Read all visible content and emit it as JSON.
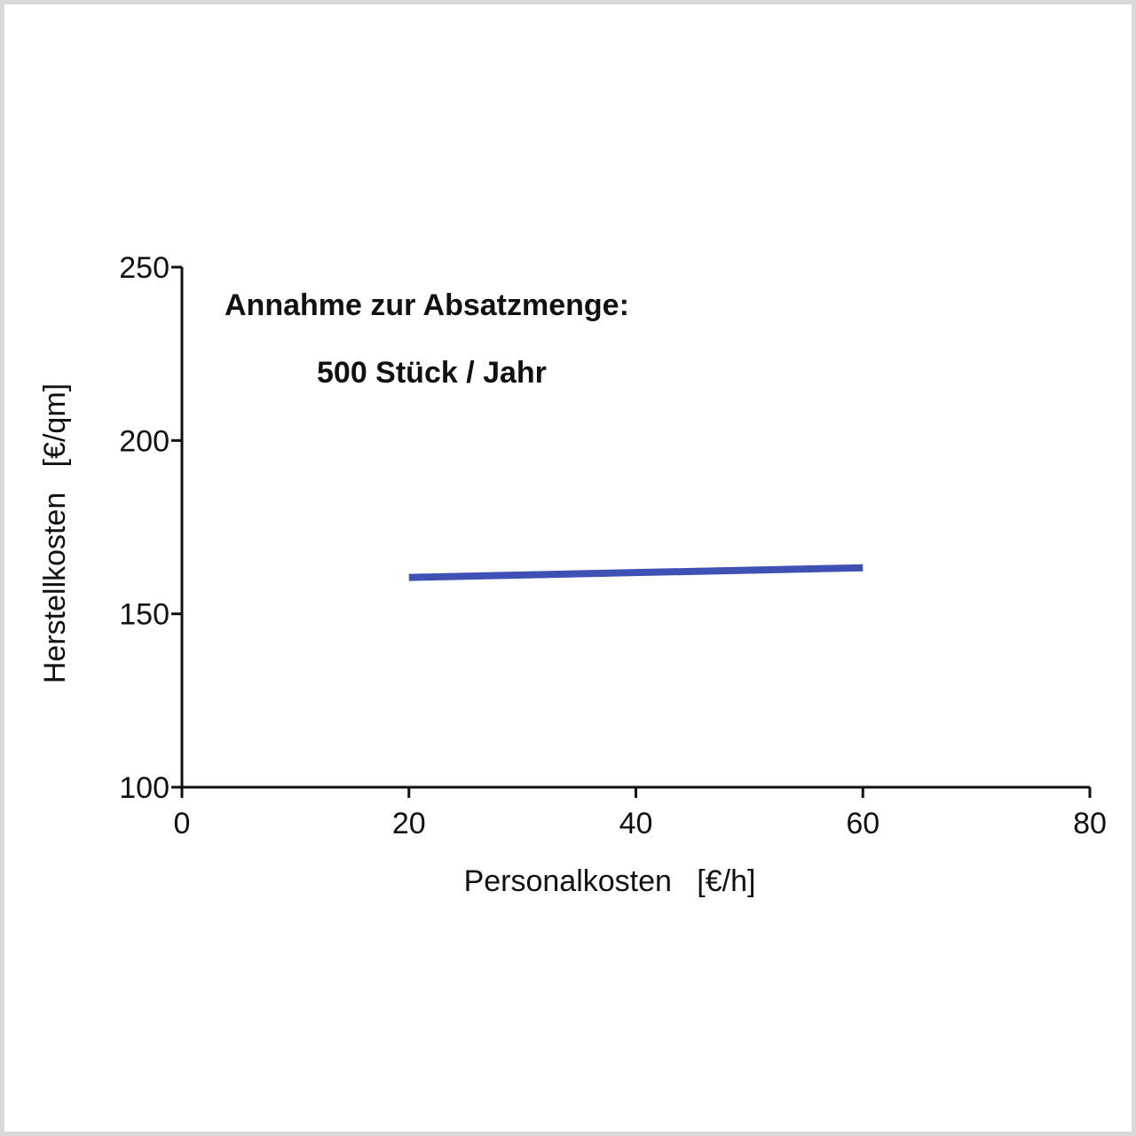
{
  "chart_data": {
    "type": "line",
    "xlabel": "Personalkosten   [€/h]",
    "ylabel": "Herstellkosten   [€/qm]",
    "xlim": [
      0,
      80
    ],
    "ylim": [
      100,
      250
    ],
    "xticks": [
      0,
      20,
      40,
      60,
      80
    ],
    "yticks": [
      100,
      150,
      200,
      250
    ],
    "grid": false,
    "series": [
      {
        "color": "#3f51b5",
        "x": [
          20,
          60
        ],
        "y": [
          160.5,
          163.3
        ]
      }
    ],
    "annotations": [
      "Annahme zur Absatzmenge:",
      "500 Stück / Jahr"
    ]
  }
}
